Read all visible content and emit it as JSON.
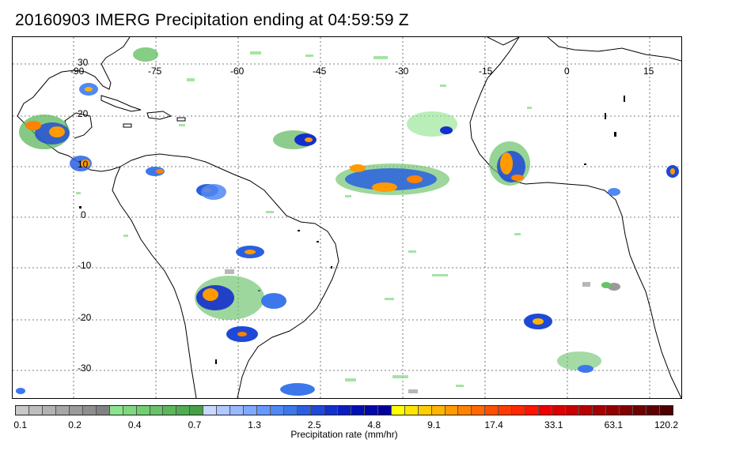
{
  "title": "20160903 IMERG Precipitation ending at 04:59:59 Z",
  "map": {
    "lon_labels": [
      "-90",
      "-75",
      "-60",
      "-45",
      "-30",
      "-15",
      "0",
      "15"
    ],
    "lat_labels": [
      "30",
      "20",
      "10",
      "0",
      "-10",
      "-20",
      "-30"
    ],
    "gridline_style": "dotted",
    "coastline_color": "#000000"
  },
  "colorbar": {
    "title": "Precipitation rate (mm/hr)",
    "tick_labels": [
      "0.1",
      "0.2",
      "0.4",
      "0.7",
      "1.3",
      "2.5",
      "4.8",
      "9.1",
      "17.4",
      "33.1",
      "63.1",
      "120.2"
    ],
    "colors": [
      "#c8c8c8",
      "#bdbdbd",
      "#b2b2b2",
      "#a6a6a6",
      "#9a9a9a",
      "#8e8e8e",
      "#828282",
      "#8be38b",
      "#7fd87f",
      "#73cd73",
      "#68c268",
      "#5cb75c",
      "#51ac51",
      "#46a146",
      "#c8d8ff",
      "#b0c8ff",
      "#98b8ff",
      "#80a8ff",
      "#6898ff",
      "#5088f5",
      "#3c78eb",
      "#2a60e0",
      "#1e48d8",
      "#1430cc",
      "#0a1ec0",
      "#0010b4",
      "#0008a8",
      "#00009c",
      "#ffff00",
      "#ffe600",
      "#ffcd00",
      "#ffb400",
      "#ff9b00",
      "#ff8200",
      "#ff6900",
      "#ff5000",
      "#ff3c00",
      "#ff2800",
      "#ff1400",
      "#ee0000",
      "#dc0000",
      "#ca0000",
      "#b80000",
      "#a60000",
      "#940000",
      "#820000",
      "#700000",
      "#5e0000",
      "#4c0000"
    ]
  }
}
